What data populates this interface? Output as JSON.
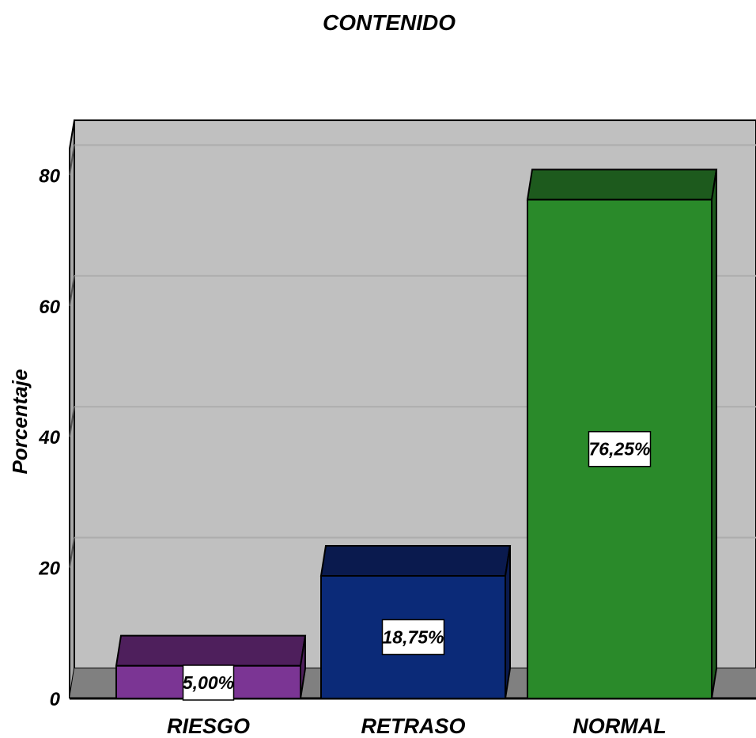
{
  "chart_data": {
    "type": "bar",
    "title": "CONTENIDO",
    "ylabel": "Porcentaje",
    "xlabel": "",
    "categories": [
      "RIESGO",
      "RETRASO",
      "NORMAL"
    ],
    "values": [
      5.0,
      18.75,
      76.25
    ],
    "data_labels": [
      "5,00%",
      "18,75%",
      "76,25%"
    ],
    "ylim": [
      0,
      85
    ],
    "yticks": [
      0,
      20,
      40,
      60,
      80
    ],
    "ytick_labels": [
      "0",
      "20",
      "40",
      "60",
      "80"
    ],
    "colors": [
      "#7b3594",
      "#0b2a78",
      "#2a8a2a"
    ],
    "top_colors": [
      "#4e1f5c",
      "#0a1a4e",
      "#1d5a1d"
    ],
    "plot_background": "#c0c0c0",
    "floor_color": "#808080",
    "grid": true,
    "style": "3d"
  }
}
